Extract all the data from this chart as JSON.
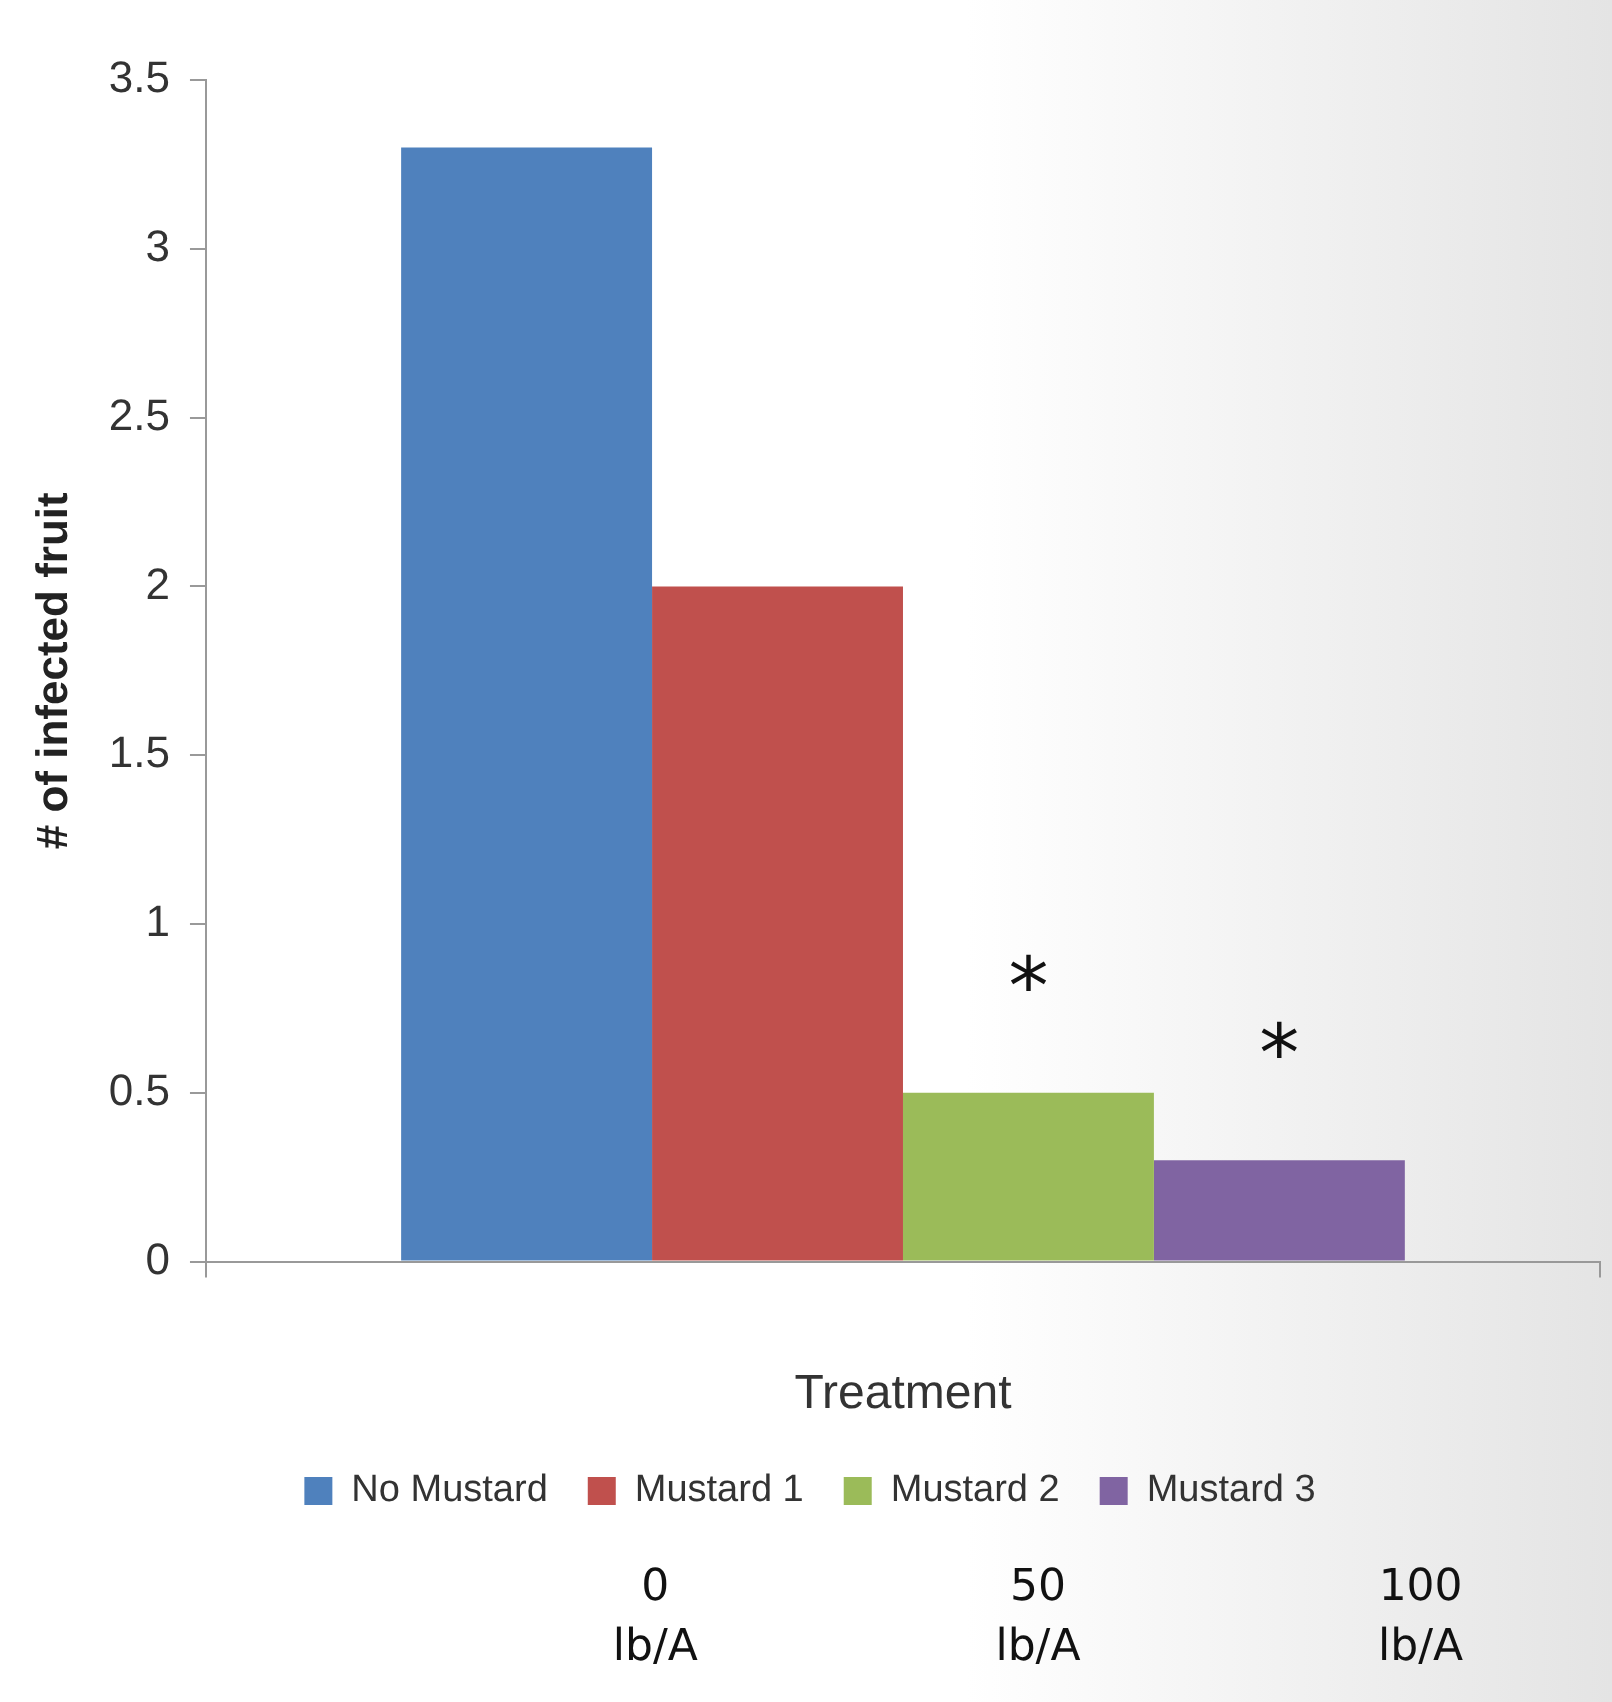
{
  "chart_data": {
    "type": "bar",
    "xlabel": "Treatment",
    "ylabel": "# of infected fruit",
    "categories": [
      null
    ],
    "series": [
      {
        "name": "No Mustard",
        "color": "#4f81bd",
        "values": [
          3.3
        ]
      },
      {
        "name": "Mustard 1",
        "color": "#c0504d",
        "values": [
          2
        ]
      },
      {
        "name": "Mustard 2",
        "color": "#9bbb59",
        "values": [
          0.5
        ]
      },
      {
        "name": "Mustard 3",
        "color": "#8064a2",
        "values": [
          0.3
        ]
      }
    ],
    "ylim": [
      0,
      3.5
    ],
    "yticks": [
      0,
      0.5,
      1,
      1.5,
      2,
      2.5,
      3,
      3.5
    ],
    "grid": false,
    "legend": "bottom",
    "annotations": [
      "*",
      "*",
      "0\nlb/A",
      "50\nlb/A",
      "100\nlb/A"
    ]
  }
}
